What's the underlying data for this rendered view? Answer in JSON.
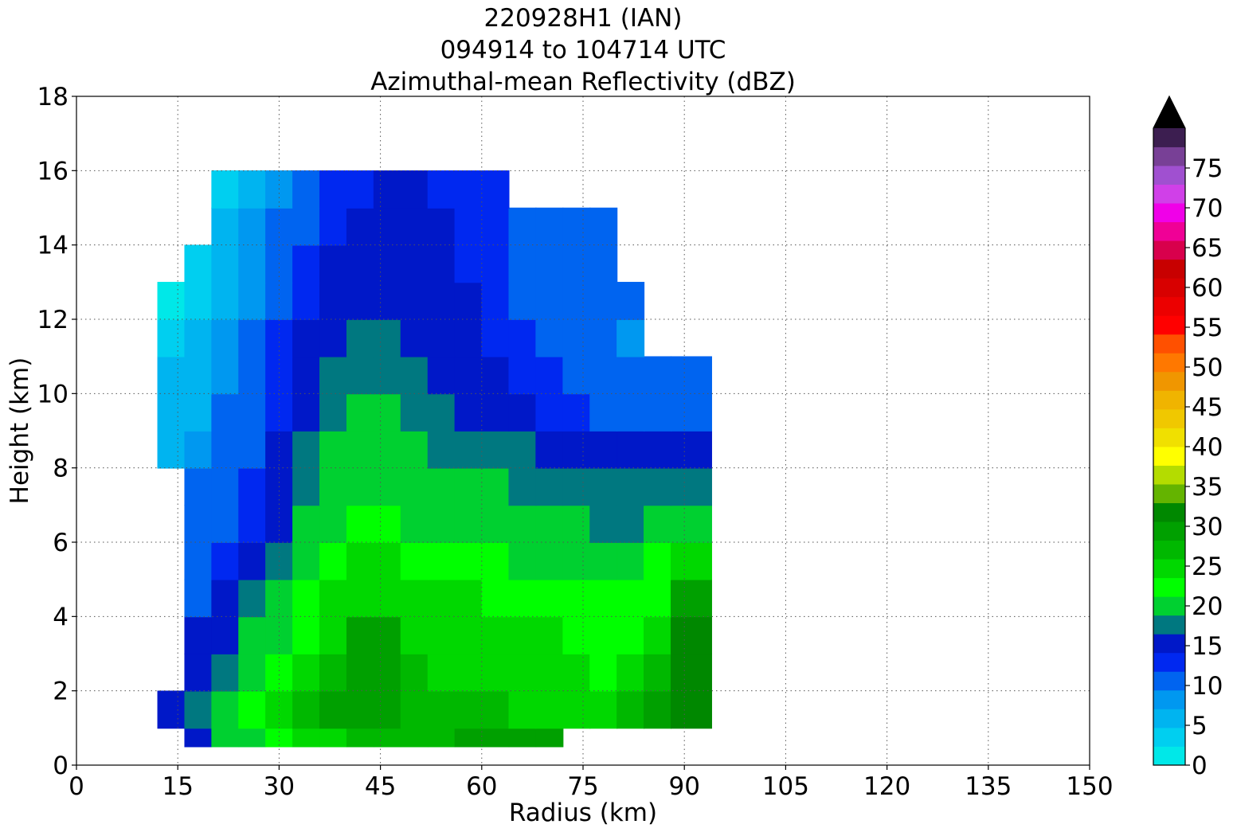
{
  "chart_data": {
    "type": "heatmap",
    "title_lines": [
      "220928H1 (IAN)",
      "094914 to 104714 UTC",
      "Azimuthal-mean Reflectivity (dBZ)"
    ],
    "xlabel": "Radius (km)",
    "ylabel": "Height (km)",
    "xlim": [
      0,
      150
    ],
    "ylim": [
      0,
      18
    ],
    "xticks": [
      0,
      15,
      30,
      45,
      60,
      75,
      90,
      105,
      120,
      135,
      150
    ],
    "yticks": [
      0,
      2,
      4,
      6,
      8,
      10,
      12,
      14,
      16,
      18
    ],
    "grid": true,
    "colorbar": {
      "min": 0,
      "max": 80,
      "step": 2.5,
      "extend": "max",
      "ticks": [
        0,
        5,
        10,
        15,
        20,
        25,
        30,
        35,
        40,
        45,
        50,
        55,
        60,
        65,
        70,
        75
      ],
      "colors": [
        "#00e8e8",
        "#00cff0",
        "#00b4f0",
        "#0098f0",
        "#0064f0",
        "#0028f0",
        "#0018c8",
        "#007880",
        "#00d030",
        "#00ff00",
        "#00d800",
        "#00b800",
        "#00a000",
        "#008800",
        "#64b400",
        "#b4dc00",
        "#ffff00",
        "#f0e000",
        "#f0c800",
        "#f0b400",
        "#f09600",
        "#ff7800",
        "#ff5000",
        "#ff0000",
        "#ec0000",
        "#d80000",
        "#c80000",
        "#d8004c",
        "#f00096",
        "#f000e8",
        "#d040e8",
        "#a050d0",
        "#784096",
        "#3c1e50"
      ],
      "over_color": "#000000"
    },
    "field": {
      "r_edges": [
        12,
        16,
        20,
        24,
        28,
        32,
        36,
        40,
        44,
        48,
        52,
        56,
        60,
        64,
        68,
        72,
        76,
        80,
        84,
        88,
        94
      ],
      "z_edges": [
        0.5,
        1.0,
        2.0,
        3.0,
        4.0,
        5.0,
        6.0,
        7.0,
        8.0,
        9.0,
        10.0,
        11.0,
        12.0,
        13.0,
        14.0,
        15.0,
        16.0
      ],
      "dbz_rows": [
        [
          null,
          16,
          20,
          22,
          24,
          26,
          26,
          28,
          28,
          28,
          28,
          30,
          30,
          30,
          30,
          null,
          null,
          null,
          null,
          null
        ],
        [
          16,
          18,
          20,
          24,
          26,
          28,
          31,
          32,
          30,
          28,
          28,
          29,
          28,
          27,
          27,
          26,
          26,
          28,
          30,
          34
        ],
        [
          null,
          16,
          18,
          21,
          24,
          26,
          28,
          31,
          31,
          28,
          27,
          27,
          26,
          25,
          25,
          25,
          24,
          25,
          28,
          34
        ],
        [
          null,
          16,
          17,
          20,
          22,
          24,
          27,
          30,
          30,
          27,
          26,
          26,
          25,
          25,
          25,
          24,
          23,
          24,
          26,
          33
        ],
        [
          null,
          12,
          15,
          18,
          20,
          23,
          25,
          27,
          27,
          26,
          25,
          25,
          24,
          24,
          24,
          24,
          23,
          23,
          24,
          31
        ],
        [
          null,
          12,
          13,
          16,
          18,
          21,
          23,
          25,
          25,
          24,
          24,
          24,
          23,
          22,
          22,
          22,
          22,
          22,
          23,
          27
        ],
        [
          null,
          10,
          12,
          14,
          17,
          20,
          22,
          23,
          23,
          22,
          22,
          22,
          21,
          20,
          20,
          20,
          19,
          19,
          20,
          21
        ],
        [
          null,
          10,
          11,
          13,
          16,
          19,
          21,
          22,
          22,
          21,
          21,
          21,
          20,
          19,
          19,
          19,
          18,
          18,
          18,
          18
        ],
        [
          6,
          9,
          11,
          12,
          15,
          18,
          20,
          21,
          21,
          20,
          19,
          19,
          18,
          18,
          17,
          17,
          16,
          16,
          16,
          16
        ],
        [
          5,
          7,
          10,
          12,
          14,
          17,
          19,
          20,
          20,
          19,
          18,
          17,
          16,
          15,
          14,
          13,
          12,
          11,
          11,
          11
        ],
        [
          5,
          6,
          8,
          11,
          14,
          16,
          18,
          19,
          19,
          18,
          17,
          16,
          15,
          14,
          13,
          12,
          11,
          10,
          10,
          10
        ],
        [
          3,
          5,
          8,
          10,
          13,
          15,
          17,
          18,
          18,
          17,
          16,
          15,
          14,
          13,
          12,
          11,
          10,
          9,
          null,
          null
        ],
        [
          2,
          4,
          7,
          9,
          12,
          14,
          16,
          17,
          17,
          16,
          16,
          15,
          14,
          12,
          11,
          11,
          10,
          10,
          null,
          null
        ],
        [
          null,
          4,
          6,
          9,
          11,
          13,
          15,
          17,
          17,
          16,
          15,
          14,
          13,
          12,
          11,
          11,
          10,
          null,
          null,
          null
        ],
        [
          null,
          null,
          5,
          8,
          10,
          12,
          14,
          16,
          16,
          15,
          15,
          14,
          13,
          11,
          11,
          10,
          10,
          null,
          null,
          null
        ],
        [
          null,
          null,
          4,
          6,
          8,
          11,
          13,
          14,
          15,
          15,
          14,
          14,
          13,
          null,
          null,
          null,
          null,
          null,
          null,
          null
        ]
      ]
    }
  }
}
